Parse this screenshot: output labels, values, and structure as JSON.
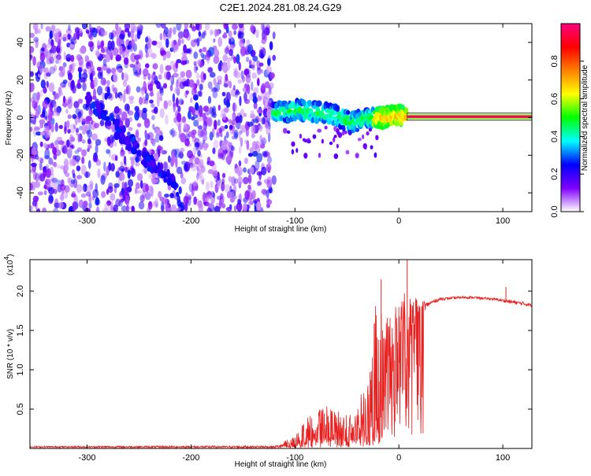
{
  "title": "C2E1.2024.281.08.24.G29",
  "chart_data": [
    {
      "type": "heatmap",
      "xlabel": "Height of straight line (km)",
      "ylabel": "Frequency (Hz)",
      "xlim": [
        -355,
        128
      ],
      "ylim": [
        -50,
        50
      ],
      "xticks": [
        {
          "v": -300,
          "label": "-300"
        },
        {
          "v": -200,
          "label": "-200"
        },
        {
          "v": -100,
          "label": "-100"
        },
        {
          "v": 0,
          "label": "0"
        },
        {
          "v": 100,
          "label": "100"
        }
      ],
      "yticks": [
        {
          "v": 40,
          "label": "40"
        },
        {
          "v": 20,
          "label": "20"
        },
        {
          "v": 0,
          "label": "0"
        },
        {
          "v": -20,
          "label": "-20"
        },
        {
          "v": -40,
          "label": "-40"
        }
      ],
      "noise_region_x": [
        -355,
        -120
      ],
      "diagonal_trace": {
        "x": [
          -300,
          -210
        ],
        "y": [
          10,
          -40
        ]
      },
      "signal_track": [
        {
          "x": -120,
          "y": 2
        },
        {
          "x": -100,
          "y": 4
        },
        {
          "x": -80,
          "y": 3
        },
        {
          "x": -60,
          "y": 1
        },
        {
          "x": -45,
          "y": -3
        },
        {
          "x": -30,
          "y": 0
        },
        {
          "x": -15,
          "y": 0
        },
        {
          "x": 0,
          "y": 1
        },
        {
          "x": 10,
          "y": 0.5
        },
        {
          "x": 128,
          "y": 0.5
        }
      ],
      "grid": false,
      "colorbar": {
        "label": "Normalized spectral amplitude",
        "range": [
          0,
          1
        ],
        "ticks": [
          {
            "v": 0.0,
            "label": "0.0"
          },
          {
            "v": 0.2,
            "label": "0.2"
          },
          {
            "v": 0.4,
            "label": "0.4"
          },
          {
            "v": 0.6,
            "label": "0.6"
          },
          {
            "v": 0.8,
            "label": "0.8"
          }
        ],
        "colors": [
          "#ffffff",
          "#8000ff",
          "#0000ff",
          "#00ffff",
          "#00ff00",
          "#ffff00",
          "#ff8000",
          "#ff0000",
          "#ff0080"
        ]
      }
    },
    {
      "type": "line",
      "xlabel": "Height of straight line (km)",
      "ylabel": "SNR (10 * v/v)",
      "yscale_label": "(x10",
      "yscale_exp": "4",
      "yscale_close": ")",
      "xlim": [
        -355,
        128
      ],
      "ylim": [
        0,
        2.4
      ],
      "xticks": [
        {
          "v": -300,
          "label": "-300"
        },
        {
          "v": -200,
          "label": "-200"
        },
        {
          "v": -100,
          "label": "-100"
        },
        {
          "v": 0,
          "label": "0"
        },
        {
          "v": 100,
          "label": "100"
        }
      ],
      "yticks": [
        {
          "v": 0.5,
          "label": "0.5"
        },
        {
          "v": 1.0,
          "label": "1.0"
        },
        {
          "v": 1.5,
          "label": "1.5"
        },
        {
          "v": 2.0,
          "label": "2.0"
        }
      ],
      "color": "#e82020",
      "grid": false,
      "envelope": {
        "x": [
          -355,
          -120,
          -100,
          -90,
          -80,
          -70,
          -60,
          -50,
          -40,
          -30,
          -25,
          -20,
          -18,
          -15,
          -10,
          -5,
          0,
          5,
          8,
          10,
          15,
          20,
          30,
          40,
          50,
          60,
          70,
          80,
          90,
          100,
          110,
          120,
          128
        ],
        "base": [
          0.02,
          0.02,
          0.05,
          0.1,
          0.12,
          0.14,
          0.13,
          0.12,
          0.15,
          0.25,
          0.35,
          0.4,
          0.55,
          0.9,
          1.05,
          1.15,
          1.25,
          1.45,
          1.05,
          1.5,
          1.65,
          1.75,
          1.85,
          1.9,
          1.91,
          1.92,
          1.92,
          1.91,
          1.9,
          1.88,
          1.86,
          1.84,
          1.82
        ],
        "noise": [
          0.02,
          0.03,
          0.1,
          0.3,
          0.35,
          0.4,
          0.35,
          0.35,
          0.4,
          0.7,
          1.2,
          1.7,
          1.6,
          0.7,
          0.7,
          0.6,
          0.7,
          0.6,
          0.3,
          0.45,
          0.3,
          0.15,
          0.05,
          0.04,
          0.03,
          0.03,
          0.03,
          0.03,
          0.03,
          0.04,
          0.05,
          0.05,
          0.04
        ]
      },
      "spikes": [
        {
          "x": 8,
          "y": 2.45
        },
        {
          "x": 8.6,
          "y": 0.3
        },
        {
          "x": -17,
          "y": 2.15
        },
        {
          "x": 103,
          "y": 2.05
        },
        {
          "x": 105,
          "y": 1.62
        }
      ]
    }
  ]
}
